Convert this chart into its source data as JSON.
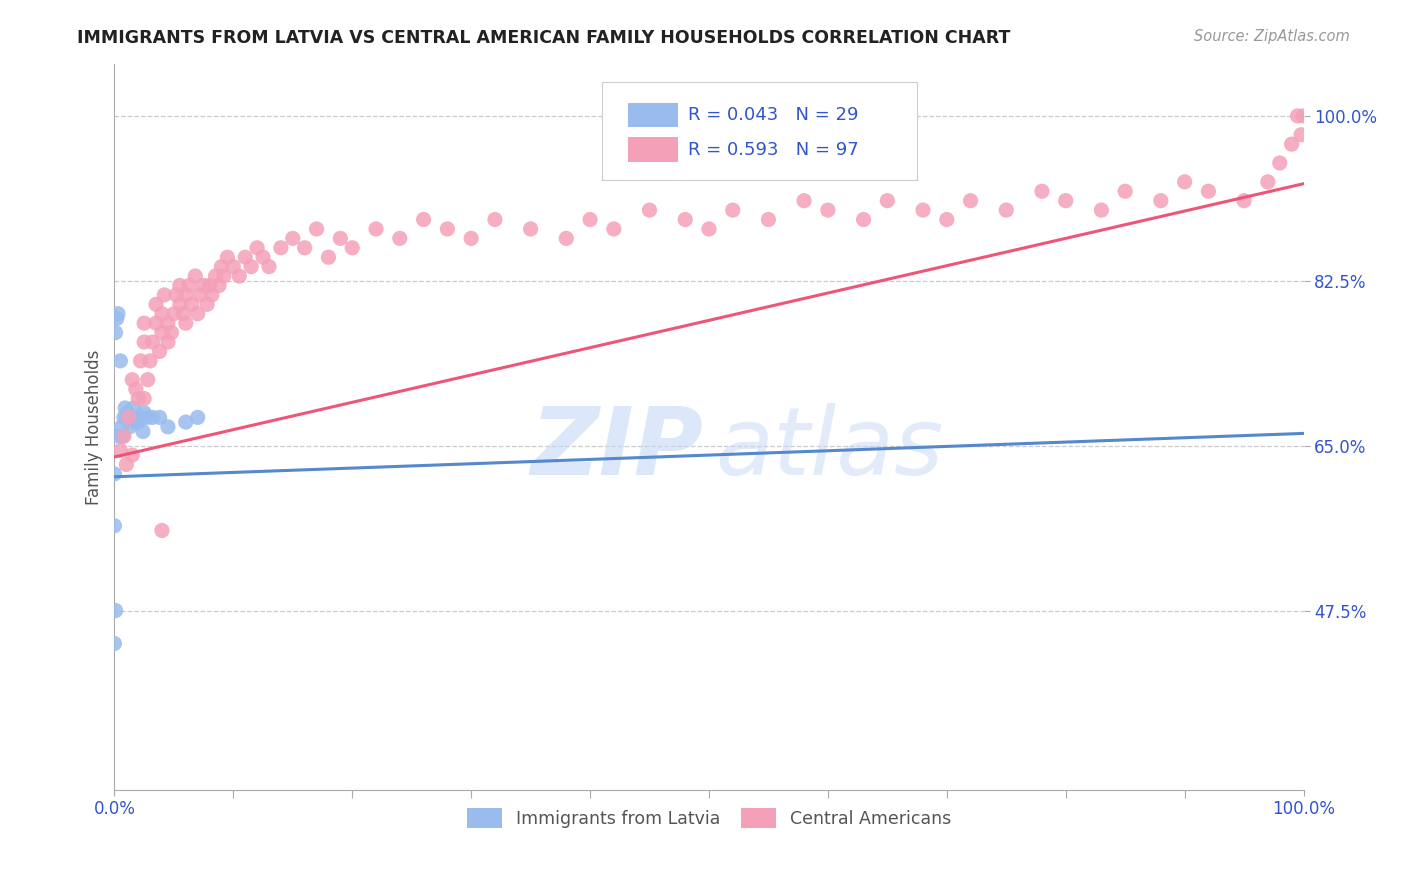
{
  "title": "IMMIGRANTS FROM LATVIA VS CENTRAL AMERICAN FAMILY HOUSEHOLDS CORRELATION CHART",
  "source": "Source: ZipAtlas.com",
  "ylabel": "Family Households",
  "ytick_values": [
    0.475,
    0.65,
    0.825,
    1.0
  ],
  "ytick_labels": [
    "47.5%",
    "65.0%",
    "82.5%",
    "100.0%"
  ],
  "xlim": [
    0.0,
    1.0
  ],
  "ylim": [
    0.285,
    1.055
  ],
  "legend_r_color": "#3355cc",
  "latvia_color": "#99bbee",
  "central_color": "#f4a0b8",
  "latvia_line_color": "#5588cc",
  "central_line_color": "#ee5577",
  "background_color": "#ffffff",
  "grid_color": "#cccccc",
  "axis_color": "#3355cc",
  "title_color": "#222222",
  "watermark_zip_color": "#c5d8f5",
  "watermark_atlas_color": "#c5d8f5",
  "legend_label_latvia": "R = 0.043   N = 29",
  "legend_label_central": "R = 0.593   N = 97",
  "bottom_legend_latvia": "Immigrants from Latvia",
  "bottom_legend_central": "Central Americans",
  "lv_x": [
    0.005,
    0.003,
    0.002,
    0.001,
    0.004,
    0.006,
    0.008,
    0.007,
    0.009,
    0.01,
    0.011,
    0.013,
    0.015,
    0.016,
    0.018,
    0.02,
    0.022,
    0.024,
    0.025,
    0.028,
    0.032,
    0.038,
    0.045,
    0.06,
    0.07,
    0.0,
    0.0,
    0.001,
    0.0
  ],
  "lv_y": [
    0.74,
    0.79,
    0.785,
    0.77,
    0.66,
    0.67,
    0.68,
    0.66,
    0.69,
    0.68,
    0.685,
    0.67,
    0.68,
    0.69,
    0.675,
    0.675,
    0.68,
    0.665,
    0.685,
    0.68,
    0.68,
    0.68,
    0.67,
    0.675,
    0.68,
    0.62,
    0.565,
    0.475,
    0.44
  ],
  "ca_x": [
    0.005,
    0.008,
    0.012,
    0.015,
    0.018,
    0.02,
    0.022,
    0.025,
    0.025,
    0.028,
    0.03,
    0.032,
    0.035,
    0.035,
    0.038,
    0.04,
    0.04,
    0.042,
    0.045,
    0.045,
    0.048,
    0.05,
    0.052,
    0.055,
    0.055,
    0.058,
    0.06,
    0.06,
    0.063,
    0.065,
    0.068,
    0.07,
    0.072,
    0.075,
    0.078,
    0.08,
    0.082,
    0.085,
    0.088,
    0.09,
    0.092,
    0.095,
    0.1,
    0.105,
    0.11,
    0.115,
    0.12,
    0.125,
    0.13,
    0.14,
    0.15,
    0.16,
    0.17,
    0.18,
    0.19,
    0.2,
    0.22,
    0.24,
    0.26,
    0.28,
    0.3,
    0.32,
    0.35,
    0.38,
    0.4,
    0.42,
    0.45,
    0.48,
    0.5,
    0.52,
    0.55,
    0.58,
    0.6,
    0.63,
    0.65,
    0.68,
    0.7,
    0.72,
    0.75,
    0.78,
    0.8,
    0.83,
    0.85,
    0.88,
    0.9,
    0.92,
    0.95,
    0.97,
    0.98,
    0.99,
    0.995,
    0.998,
    1.0,
    0.01,
    0.015,
    0.025,
    0.04
  ],
  "ca_y": [
    0.645,
    0.66,
    0.68,
    0.72,
    0.71,
    0.7,
    0.74,
    0.76,
    0.78,
    0.72,
    0.74,
    0.76,
    0.78,
    0.8,
    0.75,
    0.77,
    0.79,
    0.81,
    0.76,
    0.78,
    0.77,
    0.79,
    0.81,
    0.8,
    0.82,
    0.79,
    0.81,
    0.78,
    0.82,
    0.8,
    0.83,
    0.79,
    0.81,
    0.82,
    0.8,
    0.82,
    0.81,
    0.83,
    0.82,
    0.84,
    0.83,
    0.85,
    0.84,
    0.83,
    0.85,
    0.84,
    0.86,
    0.85,
    0.84,
    0.86,
    0.87,
    0.86,
    0.88,
    0.85,
    0.87,
    0.86,
    0.88,
    0.87,
    0.89,
    0.88,
    0.87,
    0.89,
    0.88,
    0.87,
    0.89,
    0.88,
    0.9,
    0.89,
    0.88,
    0.9,
    0.89,
    0.91,
    0.9,
    0.89,
    0.91,
    0.9,
    0.89,
    0.91,
    0.9,
    0.92,
    0.91,
    0.9,
    0.92,
    0.91,
    0.93,
    0.92,
    0.91,
    0.93,
    0.95,
    0.97,
    1.0,
    0.98,
    1.0,
    0.63,
    0.64,
    0.7,
    0.56
  ],
  "lv_line_x0": 0.0,
  "lv_line_x1": 1.0,
  "lv_line_y0": 0.617,
  "lv_line_y1": 0.663,
  "ca_line_x0": 0.0,
  "ca_line_x1": 1.0,
  "ca_line_y0": 0.638,
  "ca_line_y1": 0.928
}
